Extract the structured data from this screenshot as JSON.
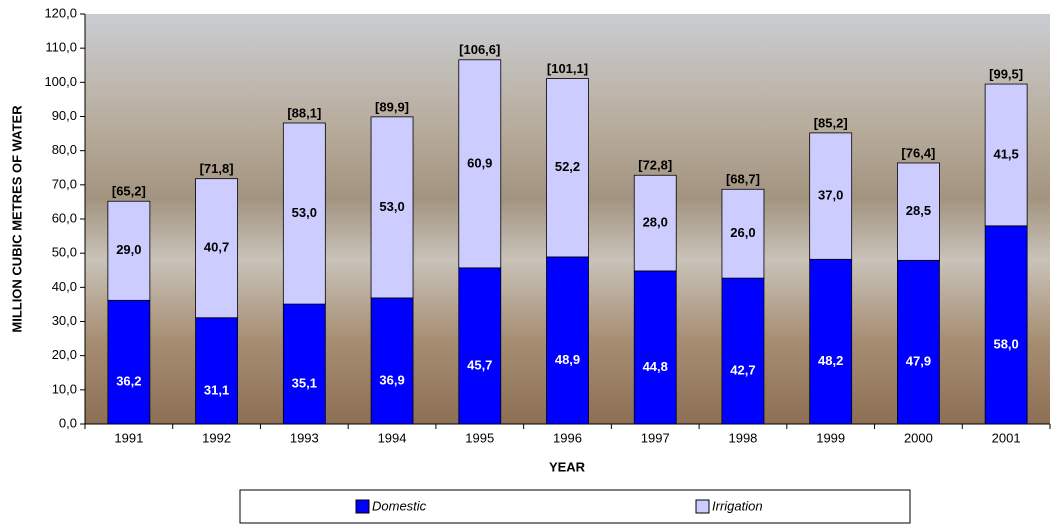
{
  "chart_data": {
    "type": "stacked-bar",
    "x_label": "YEAR",
    "y_label": "MILLION CUBIC METRES OF WATER",
    "categories": [
      "1991",
      "1992",
      "1993",
      "1994",
      "1995",
      "1996",
      "1997",
      "1998",
      "1999",
      "2000",
      "2001"
    ],
    "series": [
      {
        "name": "Domestic",
        "color": "#0000ff",
        "values": [
          36.2,
          31.1,
          35.1,
          36.9,
          45.7,
          48.9,
          44.8,
          42.7,
          48.2,
          47.9,
          58.0
        ],
        "value_labels": [
          "36,2",
          "31,1",
          "35,1",
          "36,9",
          "45,7",
          "48,9",
          "44,8",
          "42,7",
          "48,2",
          "47,9",
          "58,0"
        ]
      },
      {
        "name": "Irrigation",
        "color": "#ccccff",
        "values": [
          29.0,
          40.7,
          53.0,
          53.0,
          60.9,
          52.2,
          28.0,
          26.0,
          37.0,
          28.5,
          41.5
        ],
        "value_labels": [
          "29,0",
          "40,7",
          "53,0",
          "53,0",
          "60,9",
          "52,2",
          "28,0",
          "26,0",
          "37,0",
          "28,5",
          "41,5"
        ]
      }
    ],
    "total_labels": [
      "[65,2]",
      "[71,8]",
      "[88,1]",
      "[89,9]",
      "[106,6]",
      "[101,1]",
      "[72,8]",
      "[68,7]",
      "[85,2]",
      "[76,4]",
      "[99,5]"
    ],
    "ylim": [
      0,
      120
    ],
    "yticks": [
      {
        "value": 0,
        "label": "0,0"
      },
      {
        "value": 10,
        "label": "10,0"
      },
      {
        "value": 20,
        "label": "20,0"
      },
      {
        "value": 30,
        "label": "30,0"
      },
      {
        "value": 40,
        "label": "40,0"
      },
      {
        "value": 50,
        "label": "50,0"
      },
      {
        "value": 60,
        "label": "60,0"
      },
      {
        "value": 70,
        "label": "70,0"
      },
      {
        "value": 80,
        "label": "80,0"
      },
      {
        "value": 90,
        "label": "90,0"
      },
      {
        "value": 100,
        "label": "100,0"
      },
      {
        "value": 110,
        "label": "110,0"
      },
      {
        "value": 120,
        "label": "120,0"
      }
    ],
    "legend": "bottom"
  }
}
